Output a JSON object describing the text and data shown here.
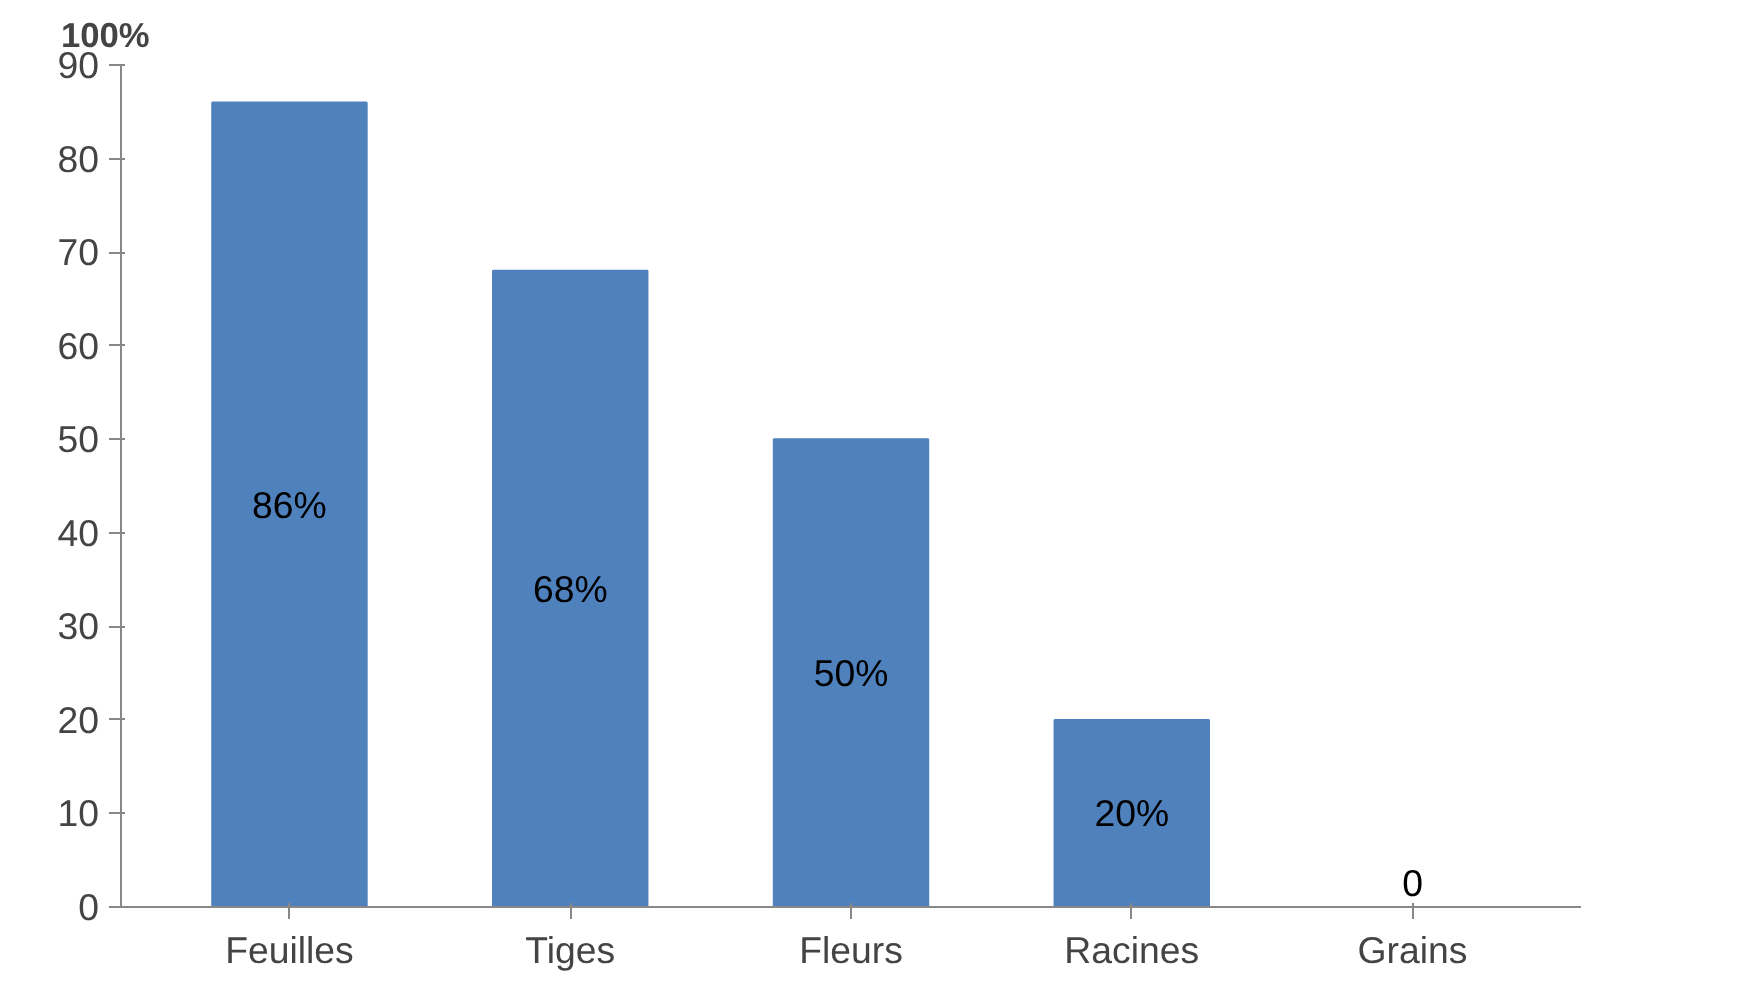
{
  "chart_data": {
    "type": "bar",
    "ylabel": "100%",
    "categories": [
      "Feuilles",
      "Tiges",
      "Fleurs",
      "Racines",
      "Grains"
    ],
    "values": [
      86,
      68,
      50,
      20,
      0
    ],
    "value_labels": [
      "86%",
      "68%",
      "50%",
      "20%",
      "0"
    ],
    "color": "#4f81bd",
    "ylim": [
      0,
      90
    ],
    "yticks": [
      0,
      10,
      20,
      30,
      40,
      50,
      60,
      70,
      80,
      90
    ],
    "grid": false
  }
}
